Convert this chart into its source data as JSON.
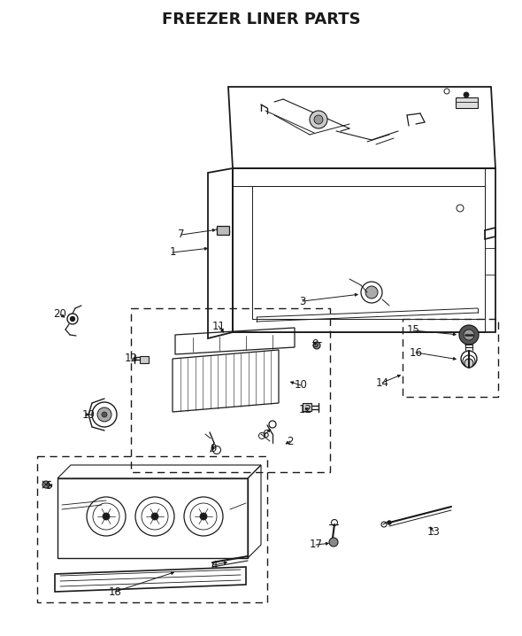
{
  "title": "FREEZER LINER PARTS",
  "title_fontsize": 13,
  "title_fontweight": "bold",
  "bg_color": "#ffffff",
  "line_color": "#1a1a1a",
  "lw_main": 1.2,
  "lw_inner": 0.8,
  "lw_thin": 0.5
}
